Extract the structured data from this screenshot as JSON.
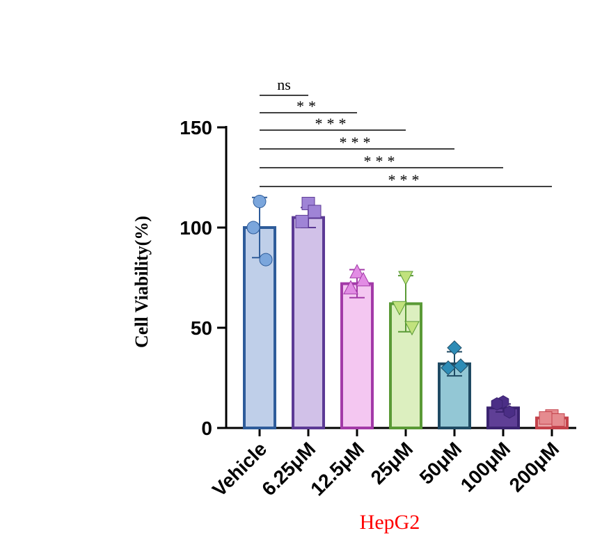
{
  "chart_data": {
    "type": "bar",
    "title": "",
    "xlabel": "HepG2",
    "xlabel_color": "#ff0000",
    "ylabel": "Cell Viability(%)",
    "ylim": [
      0,
      150
    ],
    "yticks": [
      0,
      50,
      100,
      150
    ],
    "ytick_labels": [
      "0",
      "50",
      "100",
      "150"
    ],
    "grid": false,
    "legend": "none",
    "categories": [
      "Vehicle",
      "6.25μM",
      "12.5μM",
      "25μM",
      "50μM",
      "100μM",
      "200μM"
    ],
    "values": [
      100,
      105,
      72,
      62,
      32,
      10,
      5
    ],
    "errors": [
      15,
      5,
      7,
      14,
      6,
      2,
      1
    ],
    "points": [
      [
        113,
        100,
        84
      ],
      [
        112,
        103,
        108
      ],
      [
        78,
        70,
        74
      ],
      [
        75,
        60,
        50
      ],
      [
        40,
        30,
        31
      ],
      [
        13,
        12,
        8
      ],
      [
        6,
        5,
        4
      ]
    ],
    "marker_shapes": [
      "circle",
      "square",
      "triangle-up",
      "triangle-down",
      "diamond",
      "hexagon",
      "square"
    ],
    "bar_fills": [
      "#bfcfe9",
      "#d1c1e8",
      "#f4c7f1",
      "#dcefbf",
      "#93c7d5",
      "#5f3f96",
      "#e8a4a6"
    ],
    "bar_strokes": [
      "#2e5c9a",
      "#5c3a95",
      "#a33aa8",
      "#5a9a36",
      "#1f4a63",
      "#3b2370",
      "#c4424b"
    ],
    "marker_colors": [
      "#7ba6dc",
      "#9f84d6",
      "#e28ce4",
      "#c1e27d",
      "#2e8cb6",
      "#4b2e86",
      "#e58b8f"
    ],
    "significance": [
      {
        "from": "Vehicle",
        "to": "6.25μM",
        "label": "ns"
      },
      {
        "from": "Vehicle",
        "to": "12.5μM",
        "label": "**"
      },
      {
        "from": "Vehicle",
        "to": "25μM",
        "label": "***"
      },
      {
        "from": "Vehicle",
        "to": "50μM",
        "label": "***"
      },
      {
        "from": "Vehicle",
        "to": "100μM",
        "label": "***"
      },
      {
        "from": "Vehicle",
        "to": "200μM",
        "label": "***"
      }
    ]
  }
}
